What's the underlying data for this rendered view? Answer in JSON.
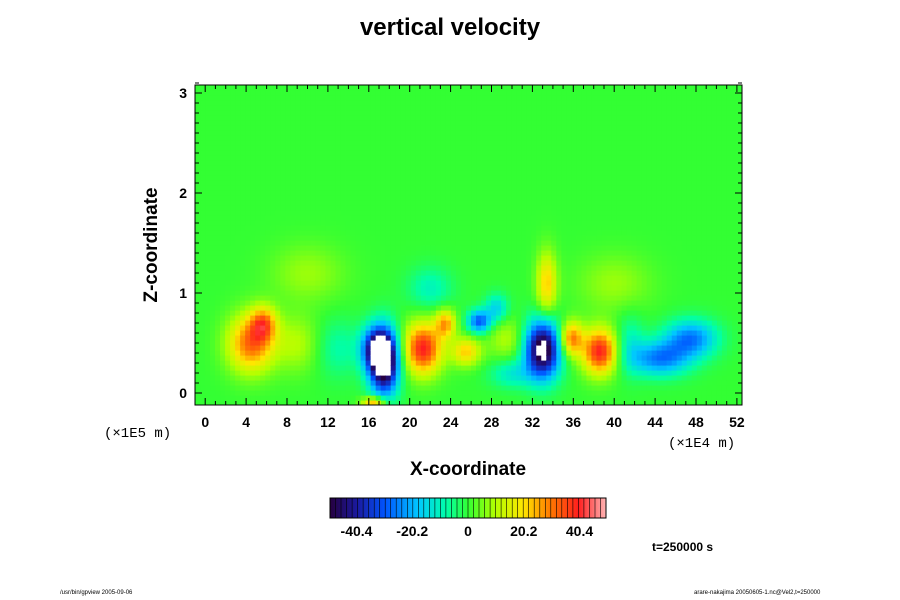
{
  "chart_data": {
    "type": "heatmap",
    "title": "vertical velocity",
    "xlabel": "X-coordinate",
    "ylabel": "Z-coordinate",
    "x_scale_note": "(×1E4 m)",
    "y_scale_note": "(×1E5 m)",
    "x_ticks": [
      "0",
      "4",
      "8",
      "12",
      "16",
      "20",
      "24",
      "28",
      "32",
      "36",
      "40",
      "44",
      "48",
      "52"
    ],
    "y_ticks": [
      "0",
      "1",
      "2",
      "3"
    ],
    "xlim": [
      -1,
      52.5
    ],
    "ylim": [
      -0.12,
      3.08
    ],
    "colorbar": {
      "range": [
        -50,
        50
      ],
      "tick_labels": [
        "-40.4",
        "-20.2",
        "0",
        "20.2",
        "40.4"
      ],
      "tick_values": [
        -40.4,
        -20.2,
        0,
        20.2,
        40.4
      ]
    },
    "background_value": 0,
    "features": [
      {
        "x": 4.5,
        "z": 0.5,
        "value": 32,
        "sx": 1.6,
        "sz": 0.2
      },
      {
        "x": 5.7,
        "z": 0.7,
        "value": 25,
        "sx": 0.9,
        "sz": 0.12
      },
      {
        "x": 17.5,
        "z": 0.32,
        "value": -62,
        "sx": 1.0,
        "sz": 0.22
      },
      {
        "x": 16.6,
        "z": 0.45,
        "value": -30,
        "sx": 1.0,
        "sz": 0.15
      },
      {
        "x": 21.3,
        "z": 0.45,
        "value": 40,
        "sx": 1.3,
        "sz": 0.18
      },
      {
        "x": 25.5,
        "z": 0.42,
        "value": 22,
        "sx": 1.0,
        "sz": 0.1
      },
      {
        "x": 23.5,
        "z": 0.7,
        "value": 25,
        "sx": 0.7,
        "sz": 0.1
      },
      {
        "x": 26.8,
        "z": 0.72,
        "value": -30,
        "sx": 0.8,
        "sz": 0.08
      },
      {
        "x": 33,
        "z": 0.44,
        "value": -56,
        "sx": 1.2,
        "sz": 0.2
      },
      {
        "x": 33.4,
        "z": 1.1,
        "value": 22,
        "sx": 0.7,
        "sz": 0.22
      },
      {
        "x": 35.8,
        "z": 0.55,
        "value": 30,
        "sx": 0.8,
        "sz": 0.12
      },
      {
        "x": 38.6,
        "z": 0.42,
        "value": 40,
        "sx": 1.2,
        "sz": 0.16
      },
      {
        "x": 44.5,
        "z": 0.35,
        "value": -26,
        "sx": 2.0,
        "sz": 0.12
      },
      {
        "x": 47.5,
        "z": 0.55,
        "value": -26,
        "sx": 1.8,
        "sz": 0.13
      },
      {
        "x": 9,
        "z": 0.5,
        "value": 10,
        "sx": 1.5,
        "sz": 0.2
      },
      {
        "x": 13,
        "z": 0.45,
        "value": -8,
        "sx": 1.5,
        "sz": 0.2
      },
      {
        "x": 29.5,
        "z": 0.55,
        "value": 10,
        "sx": 1.3,
        "sz": 0.15
      },
      {
        "x": 41.5,
        "z": 0.5,
        "value": -10,
        "sx": 1.0,
        "sz": 0.2
      },
      {
        "x": 30,
        "z": 0.2,
        "value": -12,
        "sx": 1.5,
        "sz": 0.1
      },
      {
        "x": 22,
        "z": 1.05,
        "value": -10,
        "sx": 1.5,
        "sz": 0.15
      },
      {
        "x": 28.5,
        "z": 0.85,
        "value": -16,
        "sx": 0.8,
        "sz": 0.1
      },
      {
        "x": 10,
        "z": 1.2,
        "value": 8,
        "sx": 2.5,
        "sz": 0.2
      },
      {
        "x": 40,
        "z": 1.1,
        "value": 8,
        "sx": 2.5,
        "sz": 0.2
      },
      {
        "x": 16.5,
        "z": -0.09,
        "value": 28,
        "sx": 0.8,
        "sz": 0.04
      }
    ],
    "time_label": "t=250000 s"
  },
  "footer": {
    "left": "/usr/bin/gpview 2005-09-06",
    "right": "arare-nakajima 20050605-1.nc@Vel2,t=250000"
  }
}
